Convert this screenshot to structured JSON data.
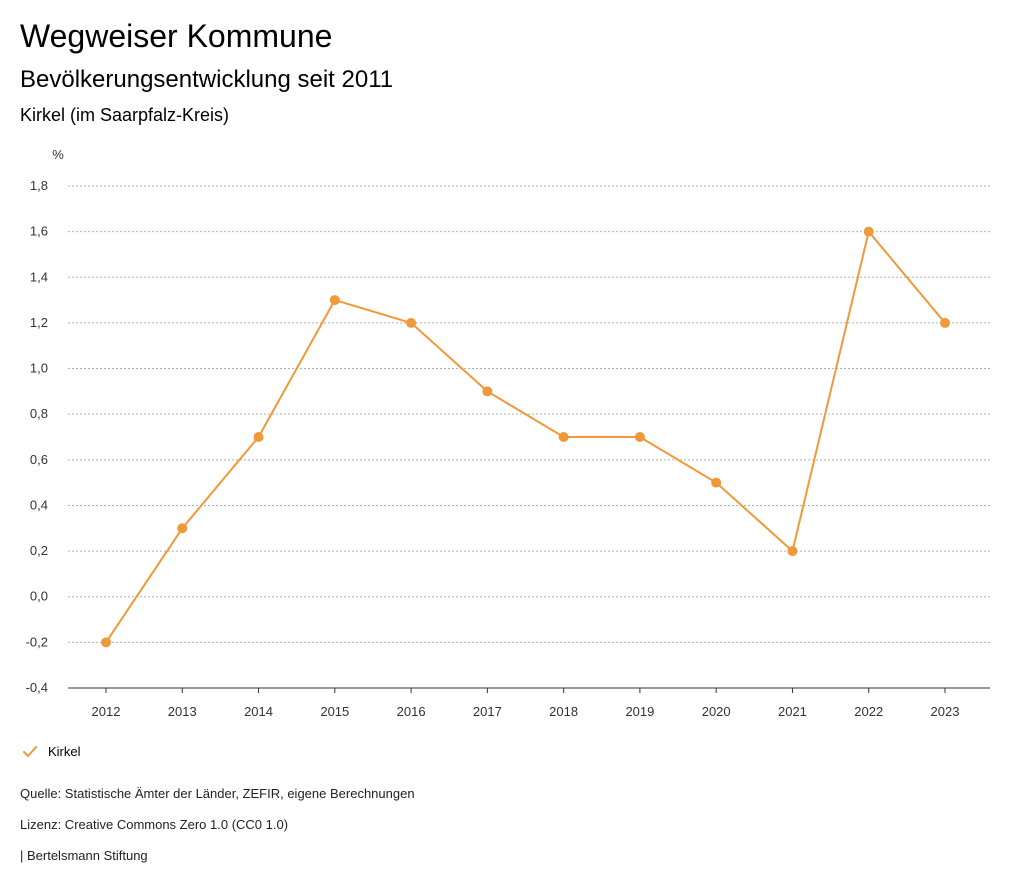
{
  "header": {
    "title": "Wegweiser Kommune",
    "subtitle": "Bevölkerungsentwicklung seit 2011",
    "region": "Kirkel (im Saarpfalz-Kreis)"
  },
  "chart_data": {
    "type": "line",
    "title": "Bevölkerungsentwicklung seit 2011",
    "ylabel": "%",
    "xlabel": "",
    "categories": [
      "2012",
      "2013",
      "2014",
      "2015",
      "2016",
      "2017",
      "2018",
      "2019",
      "2020",
      "2021",
      "2022",
      "2023"
    ],
    "series": [
      {
        "name": "Kirkel",
        "values": [
          -0.2,
          0.3,
          0.7,
          1.3,
          1.2,
          0.9,
          0.7,
          0.7,
          0.5,
          0.2,
          1.6,
          1.2
        ]
      }
    ],
    "ylim": [
      -0.4,
      1.8
    ],
    "yticks": [
      "-0,4",
      "-0,2",
      "0,0",
      "0,2",
      "0,4",
      "0,6",
      "0,8",
      "1,0",
      "1,2",
      "1,4",
      "1,6",
      "1,8"
    ],
    "grid": true,
    "legend_position": "bottom-left",
    "colors": {
      "series": "#f0993a",
      "grid": "#b0b0b0",
      "axis": "#333333"
    }
  },
  "legend": {
    "label": "Kirkel",
    "icon": "check-mark-icon"
  },
  "footer": {
    "source": "Quelle: Statistische Ämter der Länder, ZEFIR, eigene Berechnungen",
    "license": "Lizenz: Creative Commons Zero 1.0 (CC0 1.0)",
    "publisher": "| Bertelsmann Stiftung"
  }
}
